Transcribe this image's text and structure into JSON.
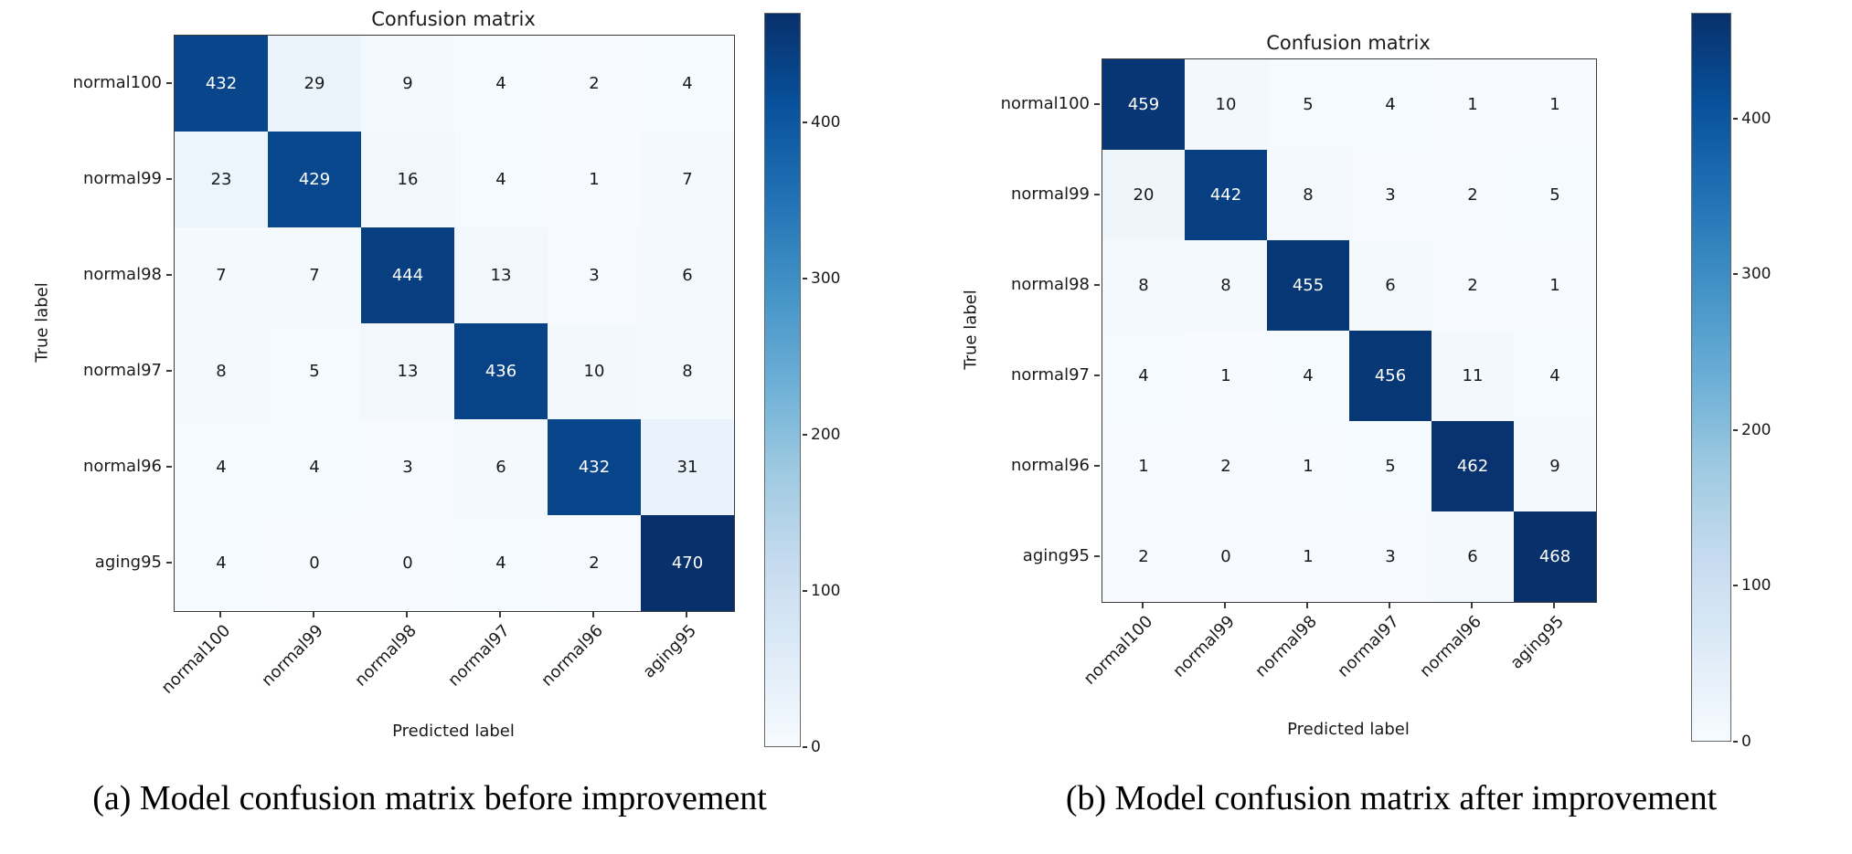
{
  "theme": {
    "background": "#ffffff",
    "colormap_name": "Blues",
    "colormap_anchors": [
      {
        "t": 0.0,
        "color": "#f7fbff"
      },
      {
        "t": 0.125,
        "color": "#deebf7"
      },
      {
        "t": 0.25,
        "color": "#c6dbef"
      },
      {
        "t": 0.375,
        "color": "#9ecae1"
      },
      {
        "t": 0.5,
        "color": "#6baed6"
      },
      {
        "t": 0.625,
        "color": "#4292c6"
      },
      {
        "t": 0.75,
        "color": "#2171b5"
      },
      {
        "t": 0.875,
        "color": "#08519c"
      },
      {
        "t": 1.0,
        "color": "#08306b"
      }
    ],
    "cell_text_dark": "#1a1a1a",
    "cell_text_light": "#ffffff",
    "spine_color": "#3a3a3a"
  },
  "chart_data": [
    {
      "type": "heatmap",
      "title": "Confusion matrix",
      "xlabel": "Predicted label",
      "ylabel": "True label",
      "caption": "(a) Model confusion matrix before improvement",
      "categories": [
        "normal100",
        "normal99",
        "normal98",
        "normal97",
        "normal96",
        "aging95"
      ],
      "matrix": [
        [
          432,
          29,
          9,
          4,
          2,
          4
        ],
        [
          23,
          429,
          16,
          4,
          1,
          7
        ],
        [
          7,
          7,
          444,
          13,
          3,
          6
        ],
        [
          8,
          5,
          13,
          436,
          10,
          8
        ],
        [
          4,
          4,
          3,
          6,
          432,
          31
        ],
        [
          4,
          0,
          0,
          4,
          2,
          470
        ]
      ],
      "vmin": 0,
      "vmax": 470,
      "colorbar_ticks": [
        400,
        300,
        200,
        100,
        0
      ],
      "legend_position": "right-colorbar",
      "grid": false
    },
    {
      "type": "heatmap",
      "title": "Confusion matrix",
      "xlabel": "Predicted label",
      "ylabel": "True label",
      "caption": "(b) Model confusion matrix after improvement",
      "categories": [
        "normal100",
        "normal99",
        "normal98",
        "normal97",
        "normal96",
        "aging95"
      ],
      "matrix": [
        [
          459,
          10,
          5,
          4,
          1,
          1
        ],
        [
          20,
          442,
          8,
          3,
          2,
          5
        ],
        [
          8,
          8,
          455,
          6,
          2,
          1
        ],
        [
          4,
          1,
          4,
          456,
          11,
          4
        ],
        [
          1,
          2,
          1,
          5,
          462,
          9
        ],
        [
          2,
          0,
          1,
          3,
          6,
          468
        ]
      ],
      "vmin": 0,
      "vmax": 468,
      "colorbar_ticks": [
        400,
        300,
        200,
        100,
        0
      ],
      "legend_position": "right-colorbar",
      "grid": false
    }
  ]
}
